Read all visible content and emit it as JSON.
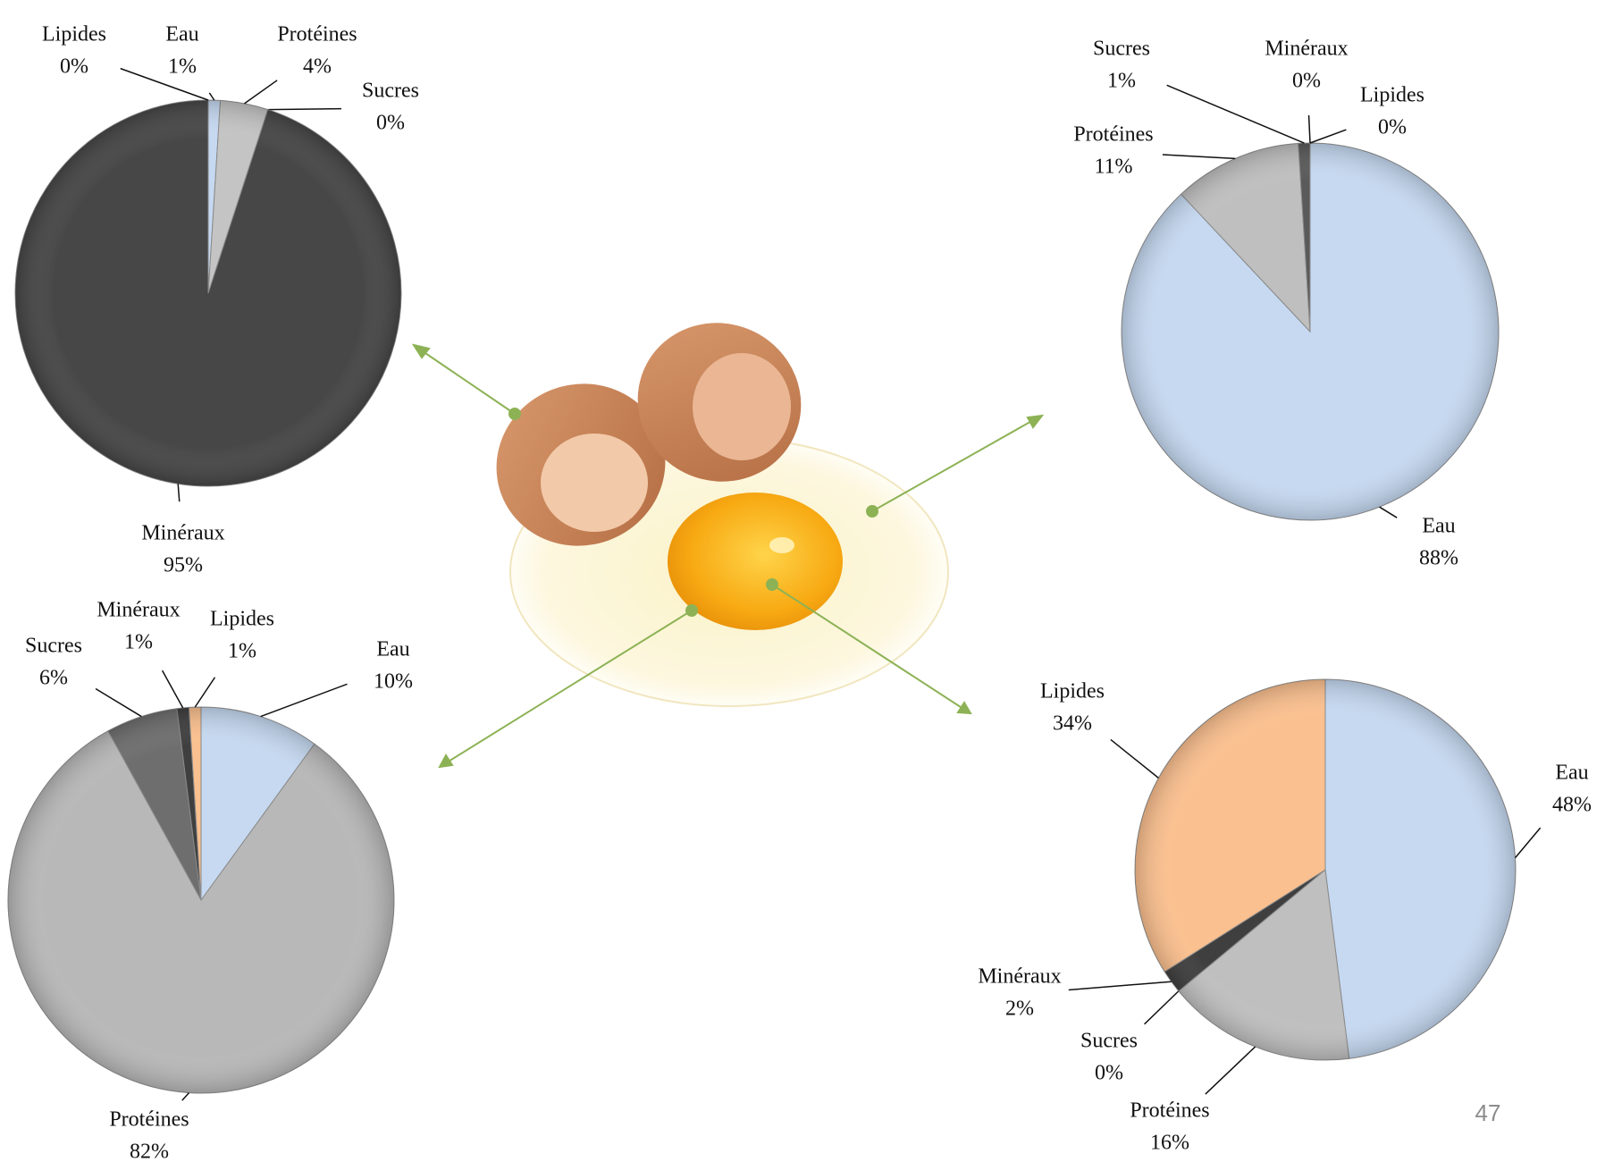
{
  "page_number": "47",
  "chart_data": [
    {
      "type": "pie",
      "categories": [
        "Eau",
        "Protéines",
        "Sucres",
        "Minéraux",
        "Lipides"
      ],
      "values": [
        1,
        4,
        0,
        95,
        0
      ],
      "value_labels": [
        "1%",
        "4%",
        "0%",
        "95%",
        "0%"
      ],
      "colors": [
        "#c6d9f1",
        "#c4c4c4",
        "#7f7f7f",
        "#474747",
        "#fbc08f"
      ]
    },
    {
      "type": "pie",
      "categories": [
        "Eau",
        "Protéines",
        "Sucres",
        "Minéraux",
        "Lipides"
      ],
      "values": [
        88,
        11,
        1,
        0,
        0
      ],
      "value_labels": [
        "88%",
        "11%",
        "1%",
        "0%",
        "0%"
      ],
      "colors": [
        "#c6d9f1",
        "#bfbfbf",
        "#5a5a5a",
        "#3f3f3f",
        "#fbc08f"
      ]
    },
    {
      "type": "pie",
      "categories": [
        "Eau",
        "Protéines",
        "Sucres",
        "Minéraux",
        "Lipides"
      ],
      "values": [
        10,
        82,
        6,
        1,
        1
      ],
      "value_labels": [
        "10%",
        "82%",
        "6%",
        "1%",
        "1%"
      ],
      "colors": [
        "#c6d9f1",
        "#b8b8b8",
        "#6e6e6e",
        "#3f3f3f",
        "#fbc08f"
      ]
    },
    {
      "type": "pie",
      "categories": [
        "Eau",
        "Protéines",
        "Sucres",
        "Minéraux",
        "Lipides"
      ],
      "values": [
        48,
        16,
        0,
        2,
        34
      ],
      "value_labels": [
        "48%",
        "16%",
        "0%",
        "2%",
        "34%"
      ],
      "colors": [
        "#c6d9f1",
        "#bfbfbf",
        "#7f7f7f",
        "#3f3f3f",
        "#fbc08f"
      ]
    }
  ]
}
